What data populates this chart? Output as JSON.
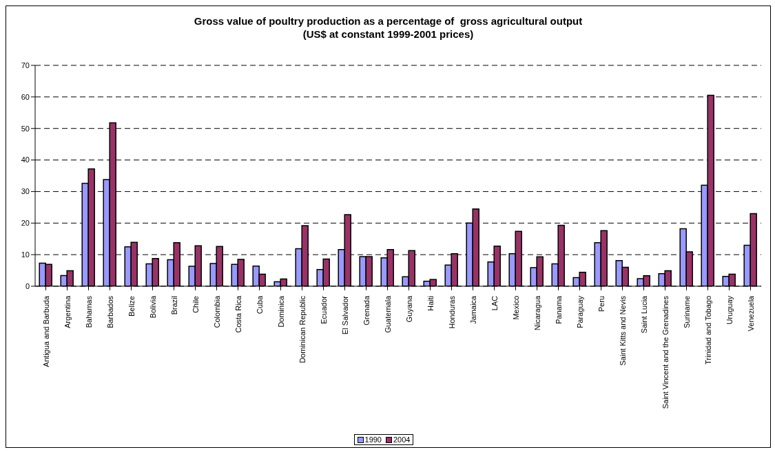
{
  "chart_data": {
    "type": "bar",
    "title": "Gross value of poultry production as a percentage of  gross agricultural output",
    "subtitle": "(US$ at constant 1999-2001 prices)",
    "categories": [
      "Antigua and Barbuda",
      "Argentina",
      "Bahamas",
      "Barbados",
      "Belize",
      "Bolivia",
      "Brazil",
      "Chile",
      "Colombia",
      "Costa Rica",
      "Cuba",
      "Dominica",
      "Dominican Republic",
      "Ecuador",
      "El Salvador",
      "Grenada",
      "Guatemala",
      "Guyana",
      "Haiti",
      "Honduras",
      "Jamaica",
      "LAC",
      "Mexico",
      "Nicaragua",
      "Panama",
      "Paraguay",
      "Peru",
      "Saint Kitts and Nevis",
      "Saint Lucia",
      "Saint Vincent and the Grenadines",
      "Suriname",
      "Trinidad and Tobago",
      "Uruguay",
      "Venezuela"
    ],
    "series": [
      {
        "name": "1990",
        "color": "#9999ff",
        "values": [
          7.3,
          3.4,
          32.6,
          33.8,
          12.5,
          7.1,
          8.4,
          6.3,
          7.2,
          6.9,
          6.4,
          1.4,
          11.9,
          5.3,
          11.6,
          9.4,
          9.0,
          3.0,
          1.6,
          6.7,
          20.0,
          7.7,
          10.3,
          5.9,
          7.1,
          2.7,
          13.8,
          8.1,
          2.4,
          4.0,
          18.2,
          32.0,
          3.1,
          13.0
        ]
      },
      {
        "name": "2004",
        "color": "#993366",
        "values": [
          6.9,
          4.9,
          37.2,
          51.8,
          13.9,
          8.8,
          13.8,
          12.8,
          12.6,
          8.5,
          3.8,
          2.3,
          19.2,
          8.6,
          22.7,
          9.4,
          11.6,
          11.3,
          2.1,
          10.3,
          24.5,
          12.7,
          17.4,
          9.3,
          19.3,
          4.4,
          17.6,
          6.0,
          3.3,
          4.9,
          10.9,
          60.5,
          3.8,
          23.0
        ]
      }
    ],
    "ylim": [
      0,
      70
    ],
    "yticks": [
      0,
      10,
      20,
      30,
      40,
      50,
      60,
      70
    ],
    "grid": "y",
    "legend": "bottom"
  }
}
